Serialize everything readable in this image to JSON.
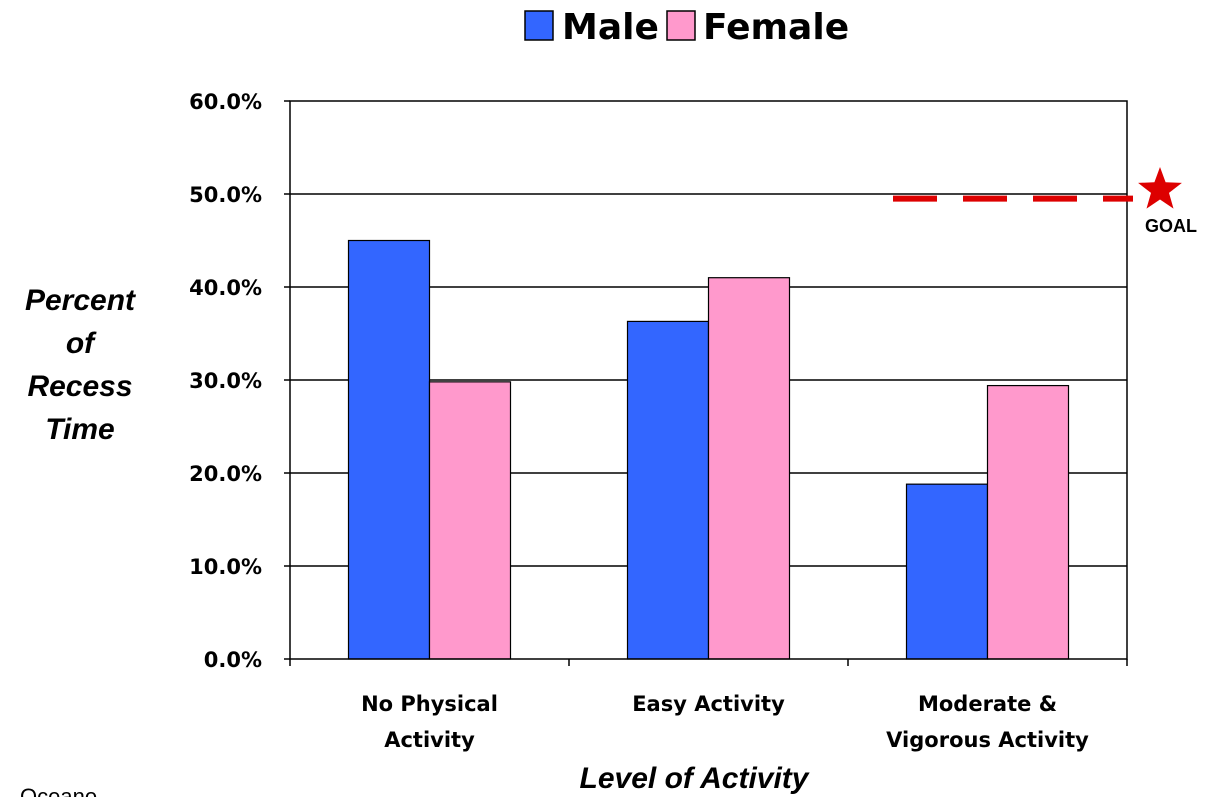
{
  "chart_data": {
    "type": "bar",
    "categories": [
      [
        "No Physical",
        "Activity"
      ],
      [
        "Easy Activity"
      ],
      [
        "Moderate &",
        "Vigorous Activity"
      ]
    ],
    "series": [
      {
        "name": "Male",
        "color": "#3366ff",
        "values": [
          45.0,
          36.3,
          18.8
        ]
      },
      {
        "name": "Female",
        "color": "#ff99cc",
        "values": [
          29.8,
          41.0,
          29.4
        ]
      }
    ],
    "yticks": [
      "0.0%",
      "10.0%",
      "20.0%",
      "30.0%",
      "40.0%",
      "50.0%",
      "60.0%"
    ],
    "ylim": [
      0,
      60
    ],
    "ylabel": [
      "Percent",
      "of",
      "Recess",
      "Time"
    ],
    "xlabel": "Level of Activity",
    "legend_position": "top",
    "grid": true,
    "goal": {
      "value": 49.5,
      "label": "GOAL",
      "color": "#dd0000"
    }
  },
  "footnote": "Oceano"
}
